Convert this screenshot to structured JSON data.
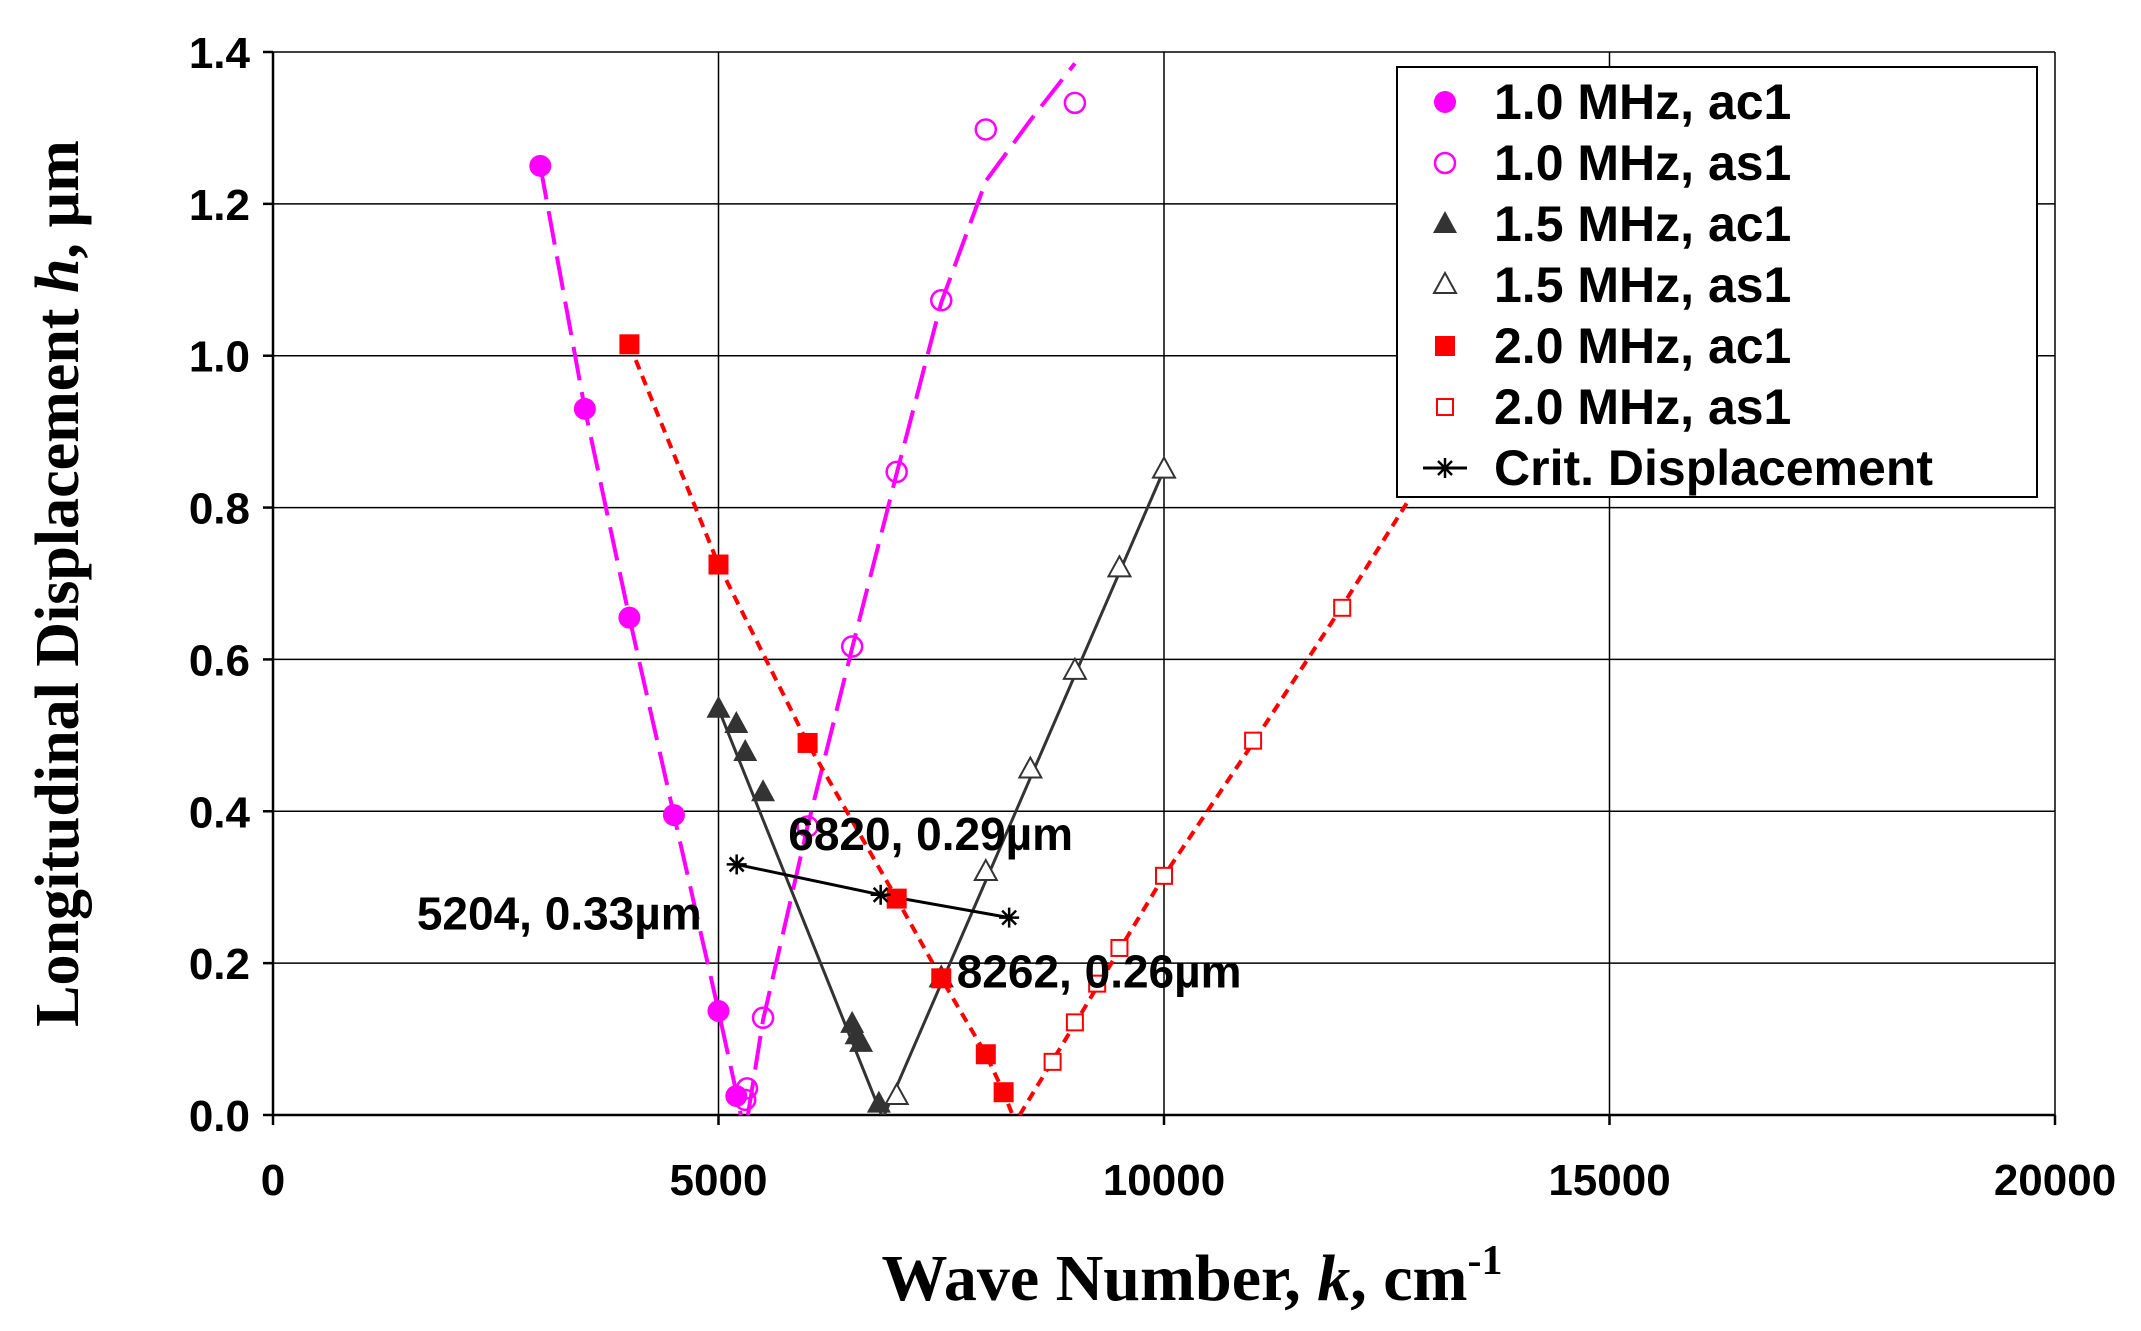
{
  "chart_data": {
    "type": "scatter",
    "title": "",
    "xlabel": "Wave Number, k, cm-1",
    "xlabel_parts": {
      "pre": "Wave Number, ",
      "var": "k",
      "post": ", cm",
      "sup": "-1"
    },
    "ylabel": "Longitudinal Displacement h, µm",
    "ylabel_parts": {
      "pre": "Longitudinal Displacement ",
      "var": "h",
      "post": ", µm"
    },
    "xlim": [
      0,
      20000
    ],
    "ylim": [
      0,
      1.4
    ],
    "xticks": [
      0,
      5000,
      10000,
      15000,
      20000
    ],
    "xtick_labels": [
      "0",
      "5000",
      "10000",
      "15000",
      "20000"
    ],
    "yticks": [
      0.0,
      0.2,
      0.4,
      0.6,
      0.8,
      1.0,
      1.2,
      1.4
    ],
    "ytick_labels": [
      "0.0",
      "0.2",
      "0.4",
      "0.6",
      "0.8",
      "1.0",
      "1.2",
      "1.4"
    ],
    "grid": true,
    "legend_position": "top-right",
    "colors": {
      "magenta": "#ff00ff",
      "dark": "#333333",
      "red": "#ff0000",
      "black": "#000000"
    },
    "series": [
      {
        "name": "1.0 MHz, ac1",
        "marker": "filled-circle",
        "color": "#ff00ff",
        "x": [
          3000,
          3500,
          4000,
          4500,
          5000,
          5200
        ],
        "y": [
          1.25,
          0.93,
          0.655,
          0.395,
          0.137,
          0.025
        ],
        "line": {
          "style": "long-dash",
          "x": [
            3000,
            3500,
            4000,
            4500,
            5000,
            5200,
            5250
          ],
          "y": [
            1.25,
            0.93,
            0.655,
            0.395,
            0.137,
            0.03,
            0.0
          ]
        }
      },
      {
        "name": "1.0 MHz, as1",
        "marker": "open-circle",
        "color": "#ff00ff",
        "x": [
          5300,
          5320,
          5500,
          6000,
          6500,
          7000,
          7500,
          8000,
          9000
        ],
        "y": [
          0.02,
          0.035,
          0.128,
          0.38,
          0.617,
          0.847,
          1.073,
          1.298,
          1.333
        ],
        "line": {
          "style": "long-dash",
          "x": [
            5330,
            5500,
            6000,
            6500,
            7000,
            7500,
            8000,
            8500,
            9000
          ],
          "y": [
            0.0,
            0.125,
            0.38,
            0.615,
            0.845,
            1.07,
            1.23,
            1.31,
            1.385
          ]
        }
      },
      {
        "name": "1.5 MHz, ac1",
        "marker": "filled-triangle",
        "color": "#333333",
        "x": [
          5000,
          5200,
          5300,
          5500,
          6500,
          6550,
          6600,
          6800
        ],
        "y": [
          0.535,
          0.515,
          0.478,
          0.425,
          0.12,
          0.105,
          0.095,
          0.015
        ],
        "line": {
          "style": "solid",
          "x": [
            5000,
            6830
          ],
          "y": [
            0.535,
            0.0
          ]
        }
      },
      {
        "name": "1.5 MHz, as1",
        "marker": "open-triangle",
        "color": "#333333",
        "x": [
          7000,
          7500,
          8000,
          8500,
          9000,
          9500,
          10000
        ],
        "y": [
          0.025,
          0.18,
          0.32,
          0.455,
          0.585,
          0.72,
          0.85
        ],
        "line": {
          "style": "solid",
          "x": [
            6860,
            10000
          ],
          "y": [
            0.0,
            0.85
          ]
        }
      },
      {
        "name": "2.0 MHz, ac1",
        "marker": "filled-square",
        "color": "#ff0000",
        "x": [
          4000,
          5000,
          6000,
          7000,
          7500,
          8000,
          8200
        ],
        "y": [
          1.015,
          0.725,
          0.49,
          0.285,
          0.18,
          0.08,
          0.03
        ],
        "line": {
          "style": "short-dash",
          "x": [
            4000,
            5000,
            6000,
            7000,
            7500,
            8000,
            8200,
            8300
          ],
          "y": [
            1.015,
            0.725,
            0.49,
            0.285,
            0.18,
            0.08,
            0.03,
            0.0
          ]
        }
      },
      {
        "name": "2.0 MHz, as1",
        "marker": "open-square",
        "color": "#ff0000",
        "x": [
          8750,
          9000,
          9250,
          9500,
          10000,
          11000,
          12000
        ],
        "y": [
          0.07,
          0.122,
          0.173,
          0.22,
          0.315,
          0.493,
          0.668
        ],
        "line": {
          "style": "short-dash",
          "x": [
            8380,
            9000,
            10000,
            11000,
            12000,
            12800
          ],
          "y": [
            0.0,
            0.12,
            0.315,
            0.49,
            0.67,
            0.82
          ]
        }
      },
      {
        "name": "Crit. Displacement",
        "marker": "asterisk",
        "color": "#000000",
        "x": [
          5204,
          6820,
          8262
        ],
        "y": [
          0.33,
          0.29,
          0.26
        ],
        "line": {
          "style": "solid",
          "x": [
            5204,
            6820,
            8262
          ],
          "y": [
            0.33,
            0.29,
            0.26
          ]
        }
      }
    ],
    "annotations": [
      {
        "text": "5204, 0.33µm",
        "x": 5204,
        "y": 0.33,
        "anchor": "end"
      },
      {
        "text": "6820, 0.29µm",
        "x": 6820,
        "y": 0.29,
        "anchor": "middle"
      },
      {
        "text": "8262, 0.26µm",
        "x": 8262,
        "y": 0.26,
        "anchor": "middle"
      }
    ]
  }
}
